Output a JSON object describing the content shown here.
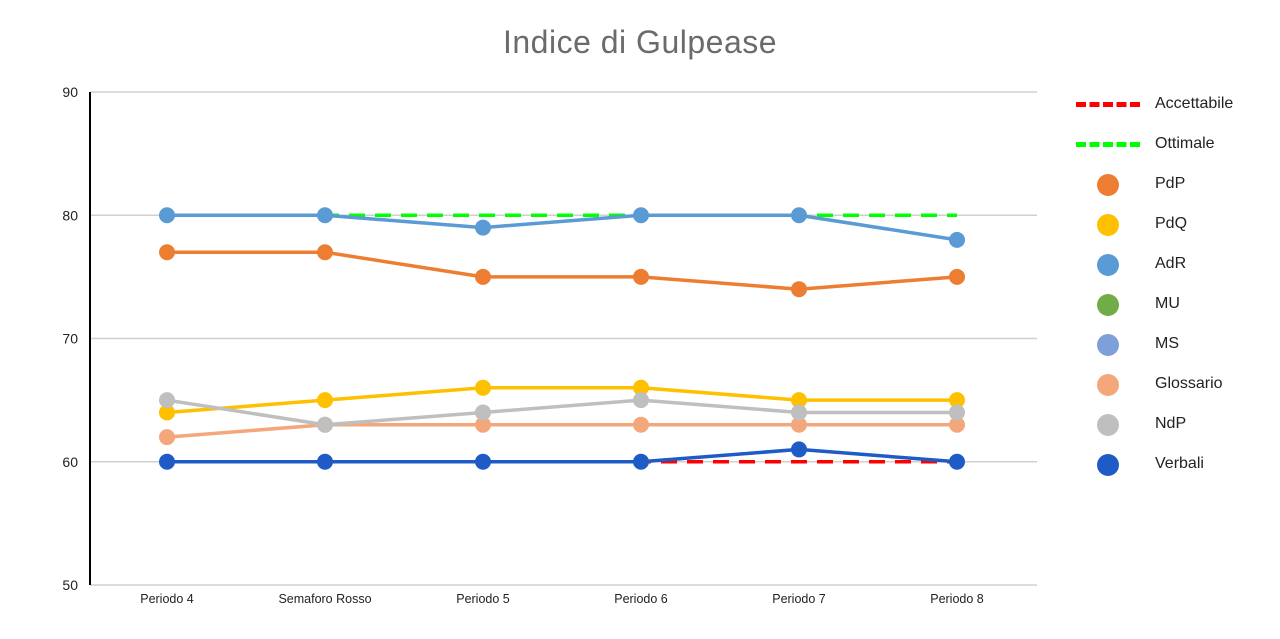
{
  "chart_data": {
    "type": "line",
    "title": "Indice di Gulpease",
    "categories": [
      "Periodo 4",
      "Semaforo Rosso",
      "Periodo 5",
      "Periodo 6",
      "Periodo 7",
      "Periodo 8"
    ],
    "ylim": [
      50,
      90
    ],
    "yticks": [
      50,
      60,
      70,
      80,
      90
    ],
    "grid": true,
    "legend_position": "right",
    "reference_lines": [
      {
        "name": "Accettabile",
        "value": 60,
        "color": "#ff0000"
      },
      {
        "name": "Ottimale",
        "value": 80,
        "color": "#00ff00"
      }
    ],
    "series": [
      {
        "name": "PdP",
        "color": "#ed7d31",
        "values": [
          77,
          77,
          75,
          75,
          74,
          75
        ]
      },
      {
        "name": "PdQ",
        "color": "#ffc000",
        "values": [
          64,
          65,
          66,
          66,
          65,
          65
        ]
      },
      {
        "name": "AdR",
        "color": "#5b9bd5",
        "values": [
          80,
          80,
          79,
          80,
          80,
          78
        ]
      },
      {
        "name": "MU",
        "color": "#70ad47",
        "values": [
          null,
          null,
          null,
          null,
          null,
          null
        ]
      },
      {
        "name": "MS",
        "color": "#7f9fd8",
        "values": [
          null,
          null,
          null,
          null,
          null,
          null
        ]
      },
      {
        "name": "Glossario",
        "color": "#f4a77a",
        "values": [
          62,
          63,
          63,
          63,
          63,
          63
        ]
      },
      {
        "name": "NdP",
        "color": "#bfbfbf",
        "values": [
          65,
          63,
          64,
          65,
          64,
          64
        ]
      },
      {
        "name": "Verbali",
        "color": "#1f5bc6",
        "values": [
          60,
          60,
          60,
          60,
          61,
          60
        ]
      }
    ]
  }
}
